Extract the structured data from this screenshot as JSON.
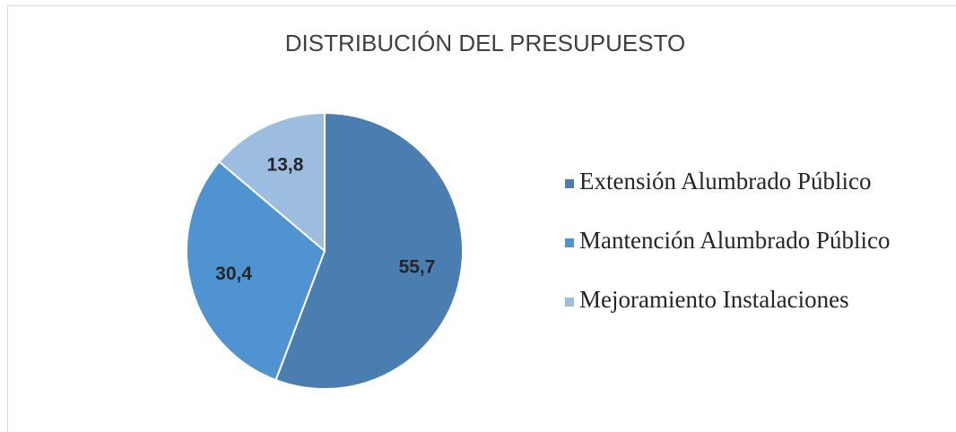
{
  "chart_data": {
    "type": "pie",
    "title": "DISTRIBUCIÓN DEL PRESUPUESTO",
    "categories": [
      "Extensión Alumbrado Público",
      "Mantención Alumbrado Público",
      "Mejoramiento Instalaciones"
    ],
    "values": [
      55.7,
      30.4,
      13.8
    ],
    "value_labels": [
      "55,7",
      "30,4",
      "13,8"
    ],
    "colors": [
      "#4a7eb0",
      "#4f94d0",
      "#9dbde0"
    ],
    "legend": "right"
  }
}
